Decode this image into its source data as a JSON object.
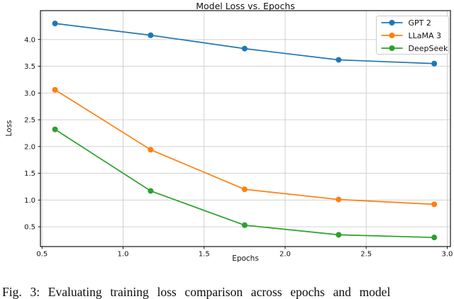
{
  "figure": {
    "caption": "Fig. 3: Evaluating training loss comparison across epochs and model"
  },
  "colors": {
    "background": "#ffffff",
    "grid": "#cccccc",
    "axis": "#000000",
    "tick_label": "#111111",
    "legend_border": "#cccccc",
    "legend_background": "#ffffff"
  },
  "chart_data": {
    "type": "line",
    "title": "Model Loss vs. Epochs",
    "xlabel": "Epochs",
    "ylabel": "Loss",
    "x": [
      0.58,
      1.17,
      1.75,
      2.33,
      2.92
    ],
    "series": [
      {
        "name": "GPT 2",
        "color": "#1f77b4",
        "values": [
          4.3,
          4.08,
          3.83,
          3.62,
          3.55
        ]
      },
      {
        "name": "LLaMA 3",
        "color": "#ff7f0e",
        "values": [
          3.06,
          1.94,
          1.2,
          1.01,
          0.92
        ]
      },
      {
        "name": "DeepSeek",
        "color": "#2ca02c",
        "values": [
          2.32,
          1.17,
          0.53,
          0.35,
          0.3
        ]
      }
    ],
    "xticks": [
      0.5,
      1.0,
      1.5,
      2.0,
      2.5,
      3.0
    ],
    "yticks": [
      0.5,
      1.0,
      1.5,
      2.0,
      2.5,
      3.0,
      3.5,
      4.0
    ],
    "xlim": [
      0.49,
      3.02
    ],
    "ylim": [
      0.13,
      4.54
    ],
    "grid": true,
    "legend_position": "upper right",
    "marker": "circle"
  }
}
